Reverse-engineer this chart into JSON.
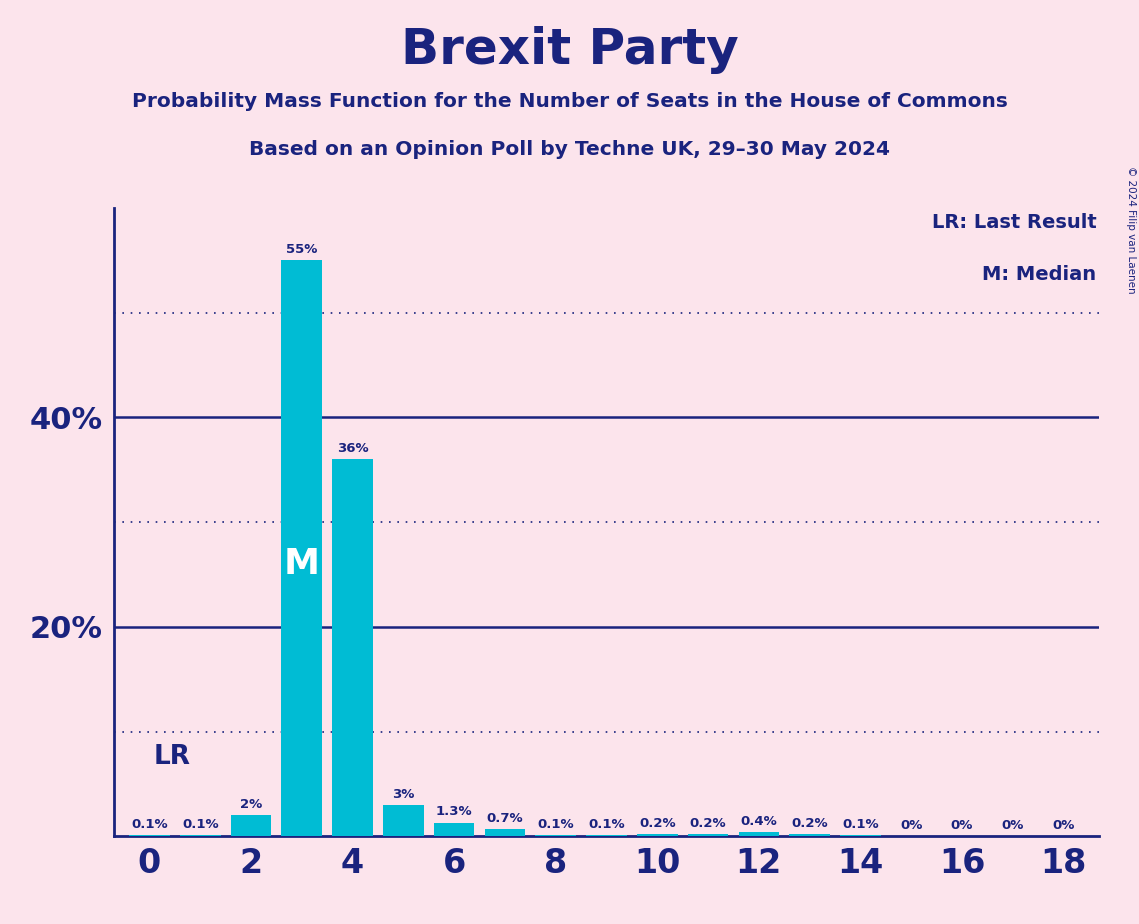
{
  "title": "Brexit Party",
  "subtitle1": "Probability Mass Function for the Number of Seats in the House of Commons",
  "subtitle2": "Based on an Opinion Poll by Techne UK, 29–30 May 2024",
  "copyright": "© 2024 Filip van Laenen",
  "seats": [
    0,
    1,
    2,
    3,
    4,
    5,
    6,
    7,
    8,
    9,
    10,
    11,
    12,
    13,
    14,
    15,
    16,
    17,
    18
  ],
  "probabilities": [
    0.1,
    0.1,
    2.0,
    55.0,
    36.0,
    3.0,
    1.3,
    0.7,
    0.1,
    0.1,
    0.2,
    0.2,
    0.4,
    0.2,
    0.1,
    0.0,
    0.0,
    0.0,
    0.0
  ],
  "prob_labels": [
    "0.1%",
    "0.1%",
    "2%",
    "55%",
    "36%",
    "3%",
    "1.3%",
    "0.7%",
    "0.1%",
    "0.1%",
    "0.2%",
    "0.2%",
    "0.4%",
    "0.2%",
    "0.1%",
    "0%",
    "0%",
    "0%",
    "0%"
  ],
  "bar_color": "#00BCD4",
  "background_color": "#fce4ec",
  "text_color": "#1a237e",
  "median_seat": 3,
  "lr_seat": 0,
  "ylim": [
    0,
    60
  ],
  "solid_yticks": [
    20,
    40
  ],
  "dotted_yticks": [
    10,
    30,
    50
  ],
  "xticks": [
    0,
    2,
    4,
    6,
    8,
    10,
    12,
    14,
    16,
    18
  ],
  "legend_lr": "LR: Last Result",
  "legend_m": "M: Median",
  "label_fontsize": 9.5,
  "ytick_fontsize": 22,
  "xtick_fontsize": 24
}
